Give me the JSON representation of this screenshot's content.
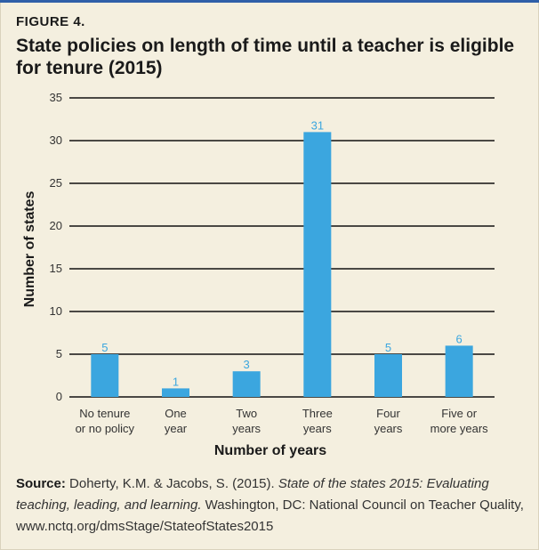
{
  "figure_label": "FIGURE 4.",
  "title": "State policies on length of time until a teacher is eligible for tenure (2015)",
  "source": {
    "label": "Source:",
    "authors": "Doherty, K.M. & Jacobs, S. (2015).",
    "work_title": "State of the states 2015: Evaluating teaching, leading, and learning.",
    "publisher": "Washington, DC: National Council on Teacher Quality, www.nctq.org/dmsStage/StateofStates2015"
  },
  "chart_data": {
    "type": "bar",
    "categories": [
      [
        "No tenure",
        "or no policy"
      ],
      [
        "One",
        "year"
      ],
      [
        "Two",
        "years"
      ],
      [
        "Three",
        "years"
      ],
      [
        "Four",
        "years"
      ],
      [
        "Five or",
        "more years"
      ]
    ],
    "values": [
      5,
      1,
      3,
      31,
      5,
      6
    ],
    "xlabel": "Number of years",
    "ylabel": "Number of states",
    "ylim": [
      0,
      35
    ],
    "yticks": [
      0,
      5,
      10,
      15,
      20,
      25,
      30,
      35
    ],
    "grid": true,
    "bar_color": "#3ba6df",
    "label_color": "#3ba6df"
  }
}
